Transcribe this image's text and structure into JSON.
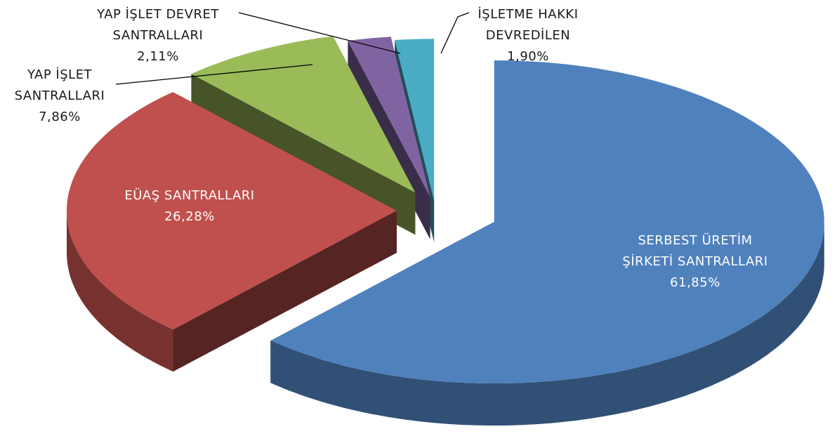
{
  "chart_data": {
    "type": "pie",
    "categories": [
      "SERBEST ÜRETİM ŞİRKETİ SANTRALLARI",
      "EÜAŞ SANTRALLARI",
      "YAP İŞLET SANTRALLARI",
      "YAP İŞLET DEVRET SANTRALLARI",
      "İŞLETME HAKKI DEVREDİLEN"
    ],
    "values": [
      61.85,
      26.28,
      7.86,
      2.11,
      1.9
    ],
    "value_labels": [
      "61,85%",
      "26,28%",
      "7,86%",
      "2,11%",
      "1,90%"
    ],
    "colors": [
      "#4f81bd",
      "#c0504d",
      "#9bbb59",
      "#8064a2",
      "#4bacc6"
    ],
    "three_d": true,
    "exploded": true
  }
}
